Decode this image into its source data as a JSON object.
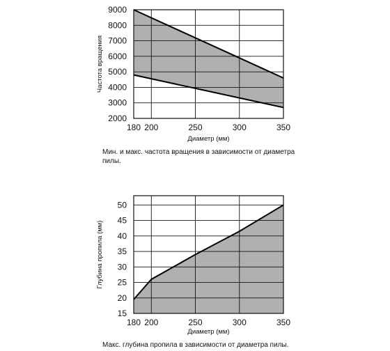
{
  "chart_data": [
    {
      "type": "area",
      "xlabel": "Диаметр (мм)",
      "ylabel": "Частота вращения",
      "x_ticks": [
        180,
        200,
        250,
        300,
        350
      ],
      "y_ticks": [
        2000,
        3000,
        4000,
        5000,
        6000,
        7000,
        8000,
        9000
      ],
      "xlim": [
        180,
        350
      ],
      "ylim": [
        2000,
        9000
      ],
      "grid": true,
      "fill_color": "#b0b0b0",
      "series": [
        {
          "x": [
            180,
            350
          ],
          "values": [
            9000,
            4600
          ]
        },
        {
          "x": [
            180,
            350
          ],
          "values": [
            4800,
            2700
          ]
        }
      ],
      "caption": "Мин. и макс. частота вращения в зависимости от диаметра пилы."
    },
    {
      "type": "area",
      "xlabel": "Диаметр (мм)",
      "ylabel": "Глубина пропила (мм)",
      "x_ticks": [
        180,
        200,
        250,
        300,
        350
      ],
      "y_ticks": [
        15,
        20,
        25,
        30,
        35,
        40,
        45,
        50
      ],
      "xlim": [
        180,
        350
      ],
      "ylim": [
        15,
        53
      ],
      "grid": true,
      "fill_color": "#b0b0b0",
      "series": [
        {
          "x": [
            180,
            200,
            250,
            300,
            350
          ],
          "values": [
            19.5,
            26,
            34,
            41.5,
            50
          ]
        }
      ],
      "caption": "Макс. глубина пропила в зависимости от диаметра пилы."
    }
  ]
}
